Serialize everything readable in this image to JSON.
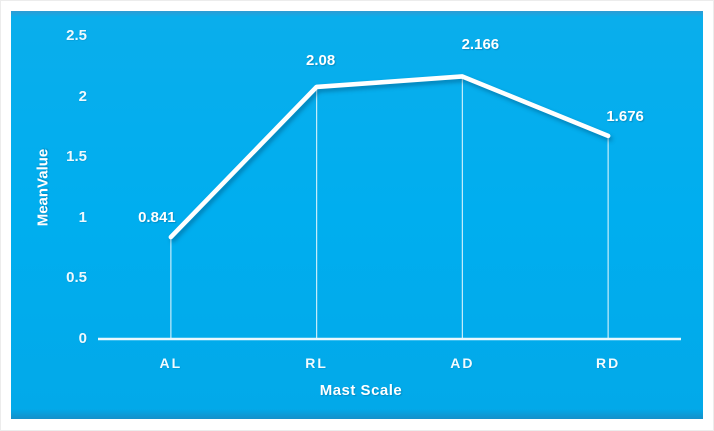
{
  "chart_data": {
    "type": "line",
    "title": "",
    "categories": [
      "AL",
      "RL",
      "AD",
      "RD"
    ],
    "values": [
      0.841,
      2.08,
      2.166,
      1.676
    ],
    "data_labels": [
      "0.841",
      "2.08",
      "2.166",
      "1.676"
    ],
    "xlabel": "Mast Scale",
    "ylabel": "MeanValue",
    "ylim": [
      0,
      2.5
    ],
    "yticks": [
      "0",
      "0.5",
      "1",
      "1.5",
      "2",
      "2.5"
    ],
    "grid": "off",
    "legend": "none",
    "drop_lines": "on",
    "markers": "none",
    "colors": {
      "background": "#00AEEF",
      "line": "#FFFFFF",
      "text": "#FFFFFF"
    }
  }
}
